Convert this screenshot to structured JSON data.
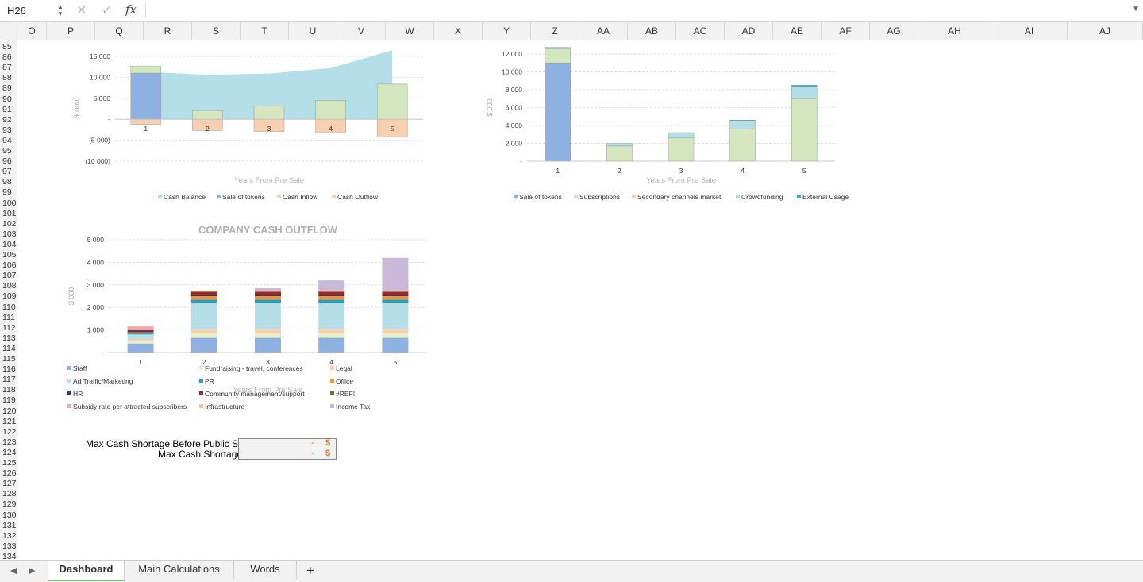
{
  "formula_bar": {
    "cell_ref": "H26",
    "cancel_icon": "✕",
    "confirm_icon": "✓",
    "fx_label": "fx",
    "formula": ""
  },
  "columns": [
    "O",
    "P",
    "Q",
    "R",
    "S",
    "T",
    "U",
    "V",
    "W",
    "X",
    "Y",
    "Z",
    "AA",
    "AB",
    "AC",
    "AD",
    "AE",
    "AF",
    "AG",
    "AH",
    "AI",
    "AJ"
  ],
  "rows": [
    "85",
    "86",
    "87",
    "88",
    "89",
    "90",
    "91",
    "92",
    "93",
    "94",
    "95",
    "96",
    "97",
    "98",
    "99",
    "100",
    "101",
    "102",
    "103",
    "104",
    "105",
    "106",
    "107",
    "108",
    "109",
    "110",
    "111",
    "112",
    "113",
    "114",
    "115",
    "116",
    "117",
    "118",
    "119",
    "120",
    "121",
    "122",
    "123",
    "124",
    "125",
    "126",
    "127",
    "128",
    "129",
    "130",
    "131",
    "132",
    "133",
    "134"
  ],
  "chart_data": [
    {
      "type": "bar",
      "title": "",
      "xlabel": "Years From Pre Sale",
      "ylabel": "$ 000",
      "ylim": [
        -10000,
        15000
      ],
      "yticks": [
        "15 000",
        "10 000",
        "5 000",
        "-",
        "(5 000)",
        "(10 000)"
      ],
      "categories": [
        "1",
        "2",
        "3",
        "4",
        "5"
      ],
      "series": [
        {
          "name": "Cash Balance",
          "kind": "area",
          "color": "#b4dfe8",
          "values": [
            11300,
            10600,
            10900,
            12200,
            16500
          ]
        },
        {
          "name": "Sale of tokens",
          "color": "#8fb1e2",
          "values": [
            11000,
            0,
            0,
            0,
            0
          ]
        },
        {
          "name": "Cash Inflow",
          "color": "#d3e6be",
          "values": [
            1700,
            2100,
            3200,
            4500,
            8400
          ]
        },
        {
          "name": "Cash Outflow",
          "color": "#f8cfb0",
          "values": [
            -1200,
            -2700,
            -2900,
            -3200,
            -4200
          ]
        }
      ],
      "legend_position": "bottom",
      "grid": true
    },
    {
      "type": "bar",
      "title": "",
      "xlabel": "Years From Pre Sale",
      "ylabel": "$ 000",
      "ylim": [
        0,
        12000
      ],
      "yticks": [
        "12 000",
        "10 000",
        "8 000",
        "6 000",
        "4 000",
        "2 000",
        "-"
      ],
      "categories": [
        "1",
        "2",
        "3",
        "4",
        "5"
      ],
      "series": [
        {
          "name": "Sale of tokens",
          "color": "#8fb1e2",
          "values": [
            11000,
            0,
            0,
            0,
            0
          ]
        },
        {
          "name": "Subscriptions",
          "color": "#d3e6be",
          "values": [
            1600,
            1700,
            2600,
            3600,
            7000
          ]
        },
        {
          "name": "Secondary channels market",
          "color": "#f8cfb0",
          "values": [
            0,
            0,
            0,
            0,
            0
          ]
        },
        {
          "name": "Crowdfunding",
          "color": "#b4dfe8",
          "values": [
            150,
            300,
            600,
            900,
            1300
          ]
        },
        {
          "name": "External Usage",
          "color": "#3aa9c9",
          "values": [
            0,
            0,
            0,
            100,
            200
          ]
        }
      ],
      "legend_position": "bottom",
      "grid": true
    },
    {
      "type": "bar",
      "title": "COMPANY CASH OUTFLOW",
      "xlabel": "Years From Pre Sale",
      "ylabel": "$ 000",
      "ylim": [
        0,
        5000
      ],
      "yticks": [
        "5 000",
        "4 000",
        "3 000",
        "2 000",
        "1 000",
        "-"
      ],
      "categories": [
        "1",
        "2",
        "3",
        "4",
        "5"
      ],
      "series": [
        {
          "name": "Staff",
          "color": "#8fb1e2",
          "values": [
            400,
            650,
            650,
            650,
            650
          ]
        },
        {
          "name": "Fundraising - travel, conferences",
          "color": "#e8f0c8",
          "values": [
            100,
            200,
            200,
            200,
            200
          ]
        },
        {
          "name": "Legal",
          "color": "#f8cfb0",
          "values": [
            100,
            200,
            200,
            200,
            200
          ]
        },
        {
          "name": "Ad Traffic/Marketing",
          "color": "#b4dfe8",
          "values": [
            200,
            1150,
            1150,
            1150,
            1150
          ]
        },
        {
          "name": "PR",
          "color": "#2f9fb8",
          "values": [
            50,
            150,
            150,
            150,
            150
          ]
        },
        {
          "name": "Office",
          "color": "#f0943c",
          "values": [
            50,
            150,
            150,
            150,
            150
          ]
        },
        {
          "name": "HR",
          "color": "#2a3f73",
          "values": [
            50,
            50,
            50,
            50,
            50
          ]
        },
        {
          "name": "Community management/support",
          "color": "#9c2a2a",
          "values": [
            50,
            150,
            150,
            150,
            150
          ]
        },
        {
          "name": "#REF!",
          "color": "#5a7a3a",
          "values": [
            0,
            0,
            0,
            0,
            0
          ]
        },
        {
          "name": "Subsidy rate per attracted subscribers",
          "color": "#e8a7b6",
          "values": [
            150,
            0,
            0,
            0,
            0
          ]
        },
        {
          "name": "Infrastructure",
          "color": "#f4c7a1",
          "values": [
            50,
            50,
            50,
            50,
            50
          ]
        },
        {
          "name": "Income Tax",
          "color": "#c9b8d8",
          "values": [
            0,
            0,
            100,
            450,
            1450
          ]
        }
      ],
      "legend_position": "bottom",
      "grid": true
    }
  ],
  "cells": {
    "label1": "Max Cash Shortage Before Public Sale:",
    "label2": "Max Cash Shortage:",
    "dash": "-",
    "currency": "$"
  },
  "tabs": {
    "items": [
      "Dashboard",
      "Main Calculations",
      "Words"
    ],
    "active": "Dashboard",
    "add_label": "+",
    "prev_icon": "◀",
    "next_icon": "▶"
  },
  "colors": {
    "accent_tab": "#7ac07a",
    "currency": "#e67e22"
  }
}
